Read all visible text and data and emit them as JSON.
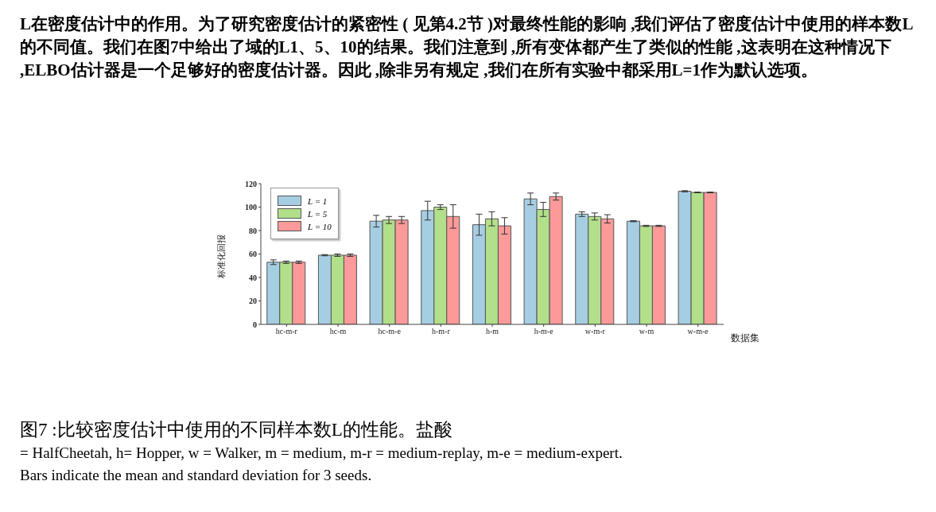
{
  "chart_data": {
    "type": "bar",
    "annotations": [
      "L在密度估计中的作用。为了研究密度估计的紧密性 ( 见第4.2节 )对最终性能的影响 ,我们评估了密度估计中使用的样本数L的不同值。我们在图7中给出了域的L1、5、10的结果。我们注意到 ,所有变体都产生了类似的性能 ,这表明在这种情况下 ,ELBO估计器是一个足够好的密度估计器。因此 ,除非另有规定 ,我们在所有实验中都采用L=1作为默认选项。",
      "图7 :比较密度估计中使用的不同样本数L的性能。盐酸",
      "= HalfCheetah, h= Hopper, w = Walker, m = medium, m-r = medium-replay, m-e = medium-expert.",
      "Bars indicate the mean and standard deviation for 3 seeds."
    ],
    "xlabel": "数据集",
    "ylabel": "标准化回报",
    "categories": [
      "hc-m-r",
      "hc-m",
      "hc-m-e",
      "h-m-r",
      "h-m",
      "h-m-e",
      "w-m-r",
      "w-m",
      "w-m-e"
    ],
    "series": [
      {
        "name": "L = 1",
        "color": "#a6cee3",
        "values": [
          53,
          59,
          88,
          97,
          85,
          107,
          94,
          88,
          113.5
        ],
        "errors": [
          2,
          0.5,
          5,
          8,
          9,
          5,
          2,
          0.5,
          0.5
        ]
      },
      {
        "name": "L = 5",
        "color": "#b2df8a",
        "values": [
          53,
          59,
          89,
          100,
          90,
          98,
          92,
          84,
          112.5
        ],
        "errors": [
          1,
          1,
          3,
          2,
          6,
          6,
          3,
          0.5,
          0.3
        ]
      },
      {
        "name": "L = 10",
        "color": "#fb9a99",
        "values": [
          53,
          59,
          89,
          92,
          84,
          109,
          90,
          84,
          112.5
        ],
        "errors": [
          1,
          1,
          3,
          10,
          7,
          3,
          3.5,
          0.5,
          0.3
        ]
      }
    ],
    "ylim": [
      0,
      120
    ],
    "yticks": [
      0,
      20,
      40,
      60,
      80,
      100,
      120
    ],
    "grid": false,
    "legend": "top left"
  }
}
